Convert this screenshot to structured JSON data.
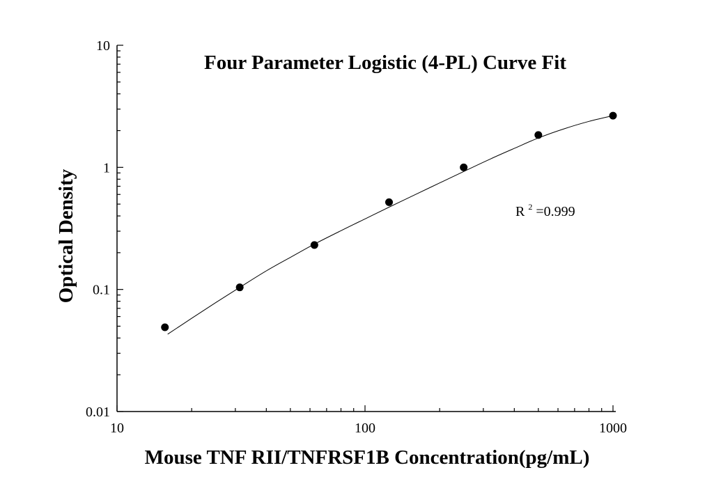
{
  "chart_data": {
    "type": "scatter",
    "title": "Four Parameter Logistic (4-PL) Curve Fit",
    "xlabel": "Mouse TNF RII/TNFRSF1B Concentration(pg/mL)",
    "ylabel": "Optical Density",
    "x_scale": "log",
    "y_scale": "log",
    "xlim": [
      10,
      1000
    ],
    "ylim": [
      0.01,
      10
    ],
    "x_ticks": [
      10,
      100,
      1000
    ],
    "x_tick_labels": [
      "10",
      "100",
      "1000"
    ],
    "y_ticks": [
      0.01,
      0.1,
      1,
      10
    ],
    "y_tick_labels": [
      "0.01",
      "0.1",
      "1",
      "10"
    ],
    "grid": false,
    "series": [
      {
        "x": [
          15.6,
          31.25,
          62.5,
          125,
          250,
          500,
          1000
        ],
        "y": [
          0.049,
          0.104,
          0.231,
          0.518,
          1.0,
          1.84,
          2.65
        ]
      }
    ],
    "fit_curve": {
      "model": "4-PL",
      "x": [
        16,
        20,
        25,
        31.25,
        40,
        50,
        62.5,
        80,
        100,
        125,
        160,
        200,
        250,
        320,
        400,
        500,
        640,
        800,
        1000
      ],
      "y": [
        0.043,
        0.058,
        0.078,
        0.104,
        0.142,
        0.183,
        0.235,
        0.303,
        0.378,
        0.472,
        0.6,
        0.745,
        0.925,
        1.17,
        1.43,
        1.74,
        2.08,
        2.38,
        2.65
      ]
    },
    "annotation": {
      "text_base": "R",
      "text_sup": "2",
      "text_rest": "=0.999"
    }
  }
}
